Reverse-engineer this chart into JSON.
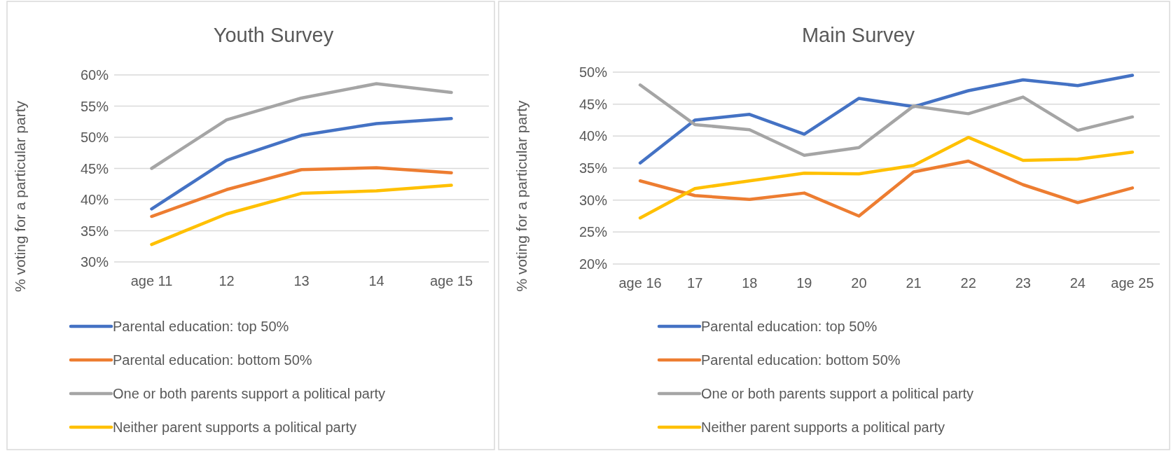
{
  "chart_data": [
    {
      "type": "line",
      "title": "Youth Survey",
      "ylabel": "% voting for a particular party",
      "categories": [
        "age 11",
        "12",
        "13",
        "14",
        "age 15"
      ],
      "ylim": [
        30,
        60
      ],
      "yticks": [
        {
          "value": 30,
          "label": "30%"
        },
        {
          "value": 35,
          "label": "35%"
        },
        {
          "value": 40,
          "label": "40%"
        },
        {
          "value": 45,
          "label": "45%"
        },
        {
          "value": 50,
          "label": "50%"
        },
        {
          "value": 55,
          "label": "55%"
        },
        {
          "value": 60,
          "label": "60%"
        }
      ],
      "grid": "y",
      "legend": "bottom",
      "series": [
        {
          "name": "Parental education: top 50%",
          "color": "#4472c4",
          "values": [
            38.5,
            46.3,
            50.3,
            52.2,
            53.0
          ]
        },
        {
          "name": "Parental education: bottom 50%",
          "color": "#ed7d31",
          "values": [
            37.3,
            41.6,
            44.8,
            45.1,
            44.3
          ]
        },
        {
          "name": "One or both parents support a political party",
          "color": "#a5a5a5",
          "values": [
            45.0,
            52.8,
            56.3,
            58.6,
            57.2
          ]
        },
        {
          "name": "Neither parent supports a political party",
          "color": "#ffc000",
          "values": [
            32.8,
            37.7,
            41.0,
            41.4,
            42.3
          ]
        }
      ]
    },
    {
      "type": "line",
      "title": "Main Survey",
      "ylabel": "% voting for a particular party",
      "categories": [
        "age 16",
        "17",
        "18",
        "19",
        "20",
        "21",
        "22",
        "23",
        "24",
        "age 25"
      ],
      "ylim": [
        20,
        50
      ],
      "yticks": [
        {
          "value": 20,
          "label": "20%"
        },
        {
          "value": 25,
          "label": "25%"
        },
        {
          "value": 30,
          "label": "30%"
        },
        {
          "value": 35,
          "label": "35%"
        },
        {
          "value": 40,
          "label": "40%"
        },
        {
          "value": 45,
          "label": "45%"
        },
        {
          "value": 50,
          "label": "50%"
        }
      ],
      "grid": "y",
      "legend": "bottom",
      "series": [
        {
          "name": "Parental education: top 50%",
          "color": "#4472c4",
          "values": [
            35.8,
            42.5,
            43.4,
            40.3,
            45.9,
            44.6,
            47.1,
            48.8,
            47.9,
            49.5
          ]
        },
        {
          "name": "Parental education: bottom 50%",
          "color": "#ed7d31",
          "values": [
            33.0,
            30.7,
            30.1,
            31.1,
            27.5,
            34.4,
            36.1,
            32.4,
            29.6,
            31.9
          ]
        },
        {
          "name": "One or both parents support a political party",
          "color": "#a5a5a5",
          "values": [
            48.0,
            41.8,
            41.0,
            37.0,
            38.2,
            44.7,
            43.5,
            46.1,
            40.9,
            43.0
          ]
        },
        {
          "name": "Neither parent supports a political party",
          "color": "#ffc000",
          "values": [
            27.2,
            31.8,
            33.0,
            34.2,
            34.1,
            35.4,
            39.8,
            36.2,
            36.4,
            37.5
          ]
        }
      ]
    }
  ]
}
